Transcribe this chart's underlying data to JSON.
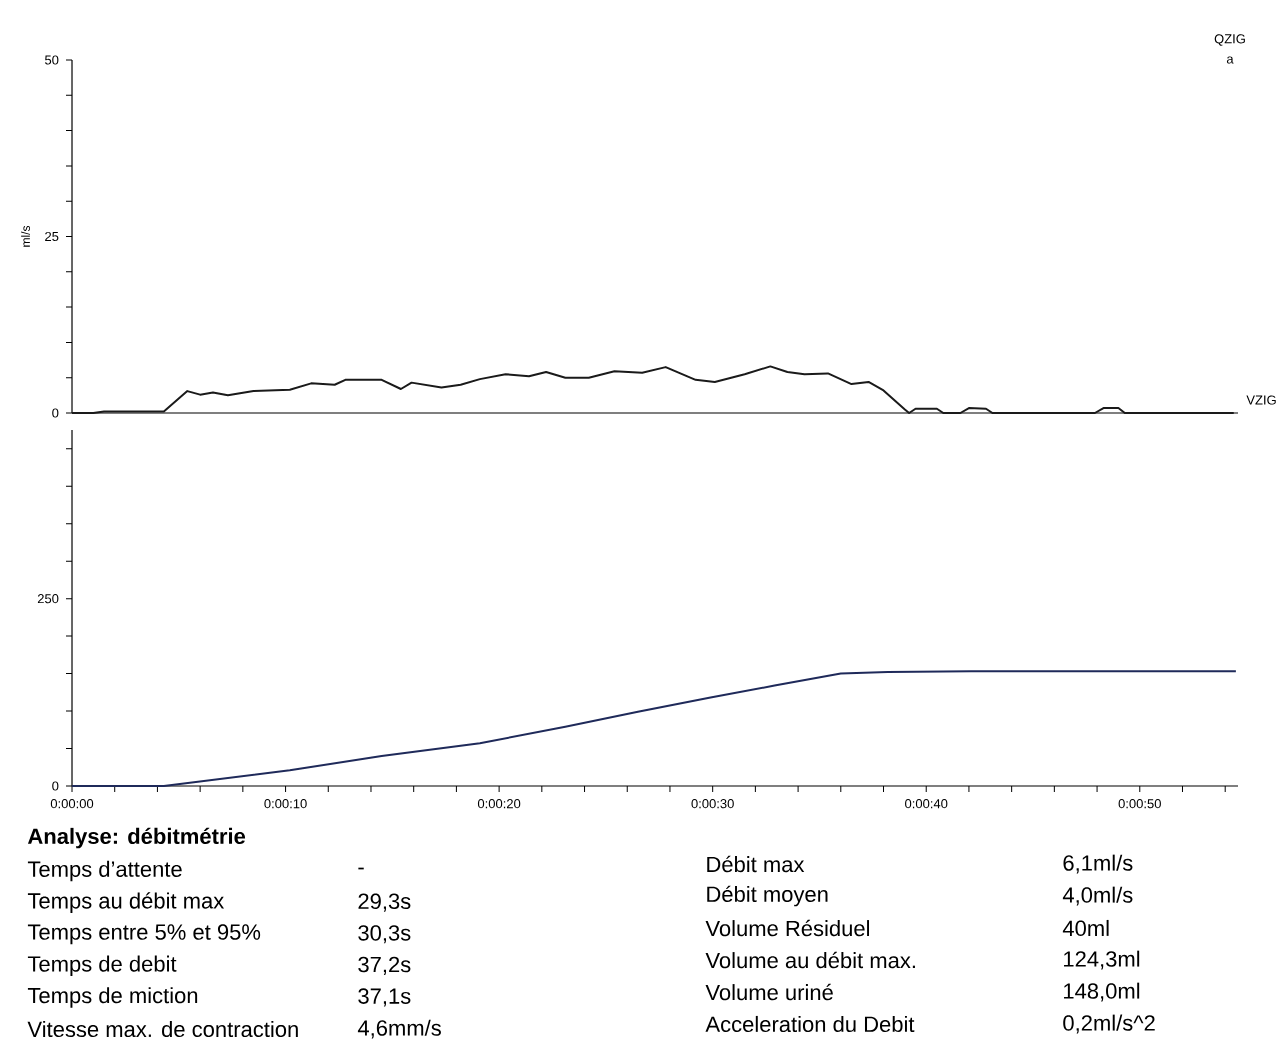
{
  "chart_data": [
    {
      "type": "line",
      "ylabel": "ml/s",
      "color": "#1a1a1a",
      "x": [
        0,
        1.0,
        1.5,
        4.3,
        5.4,
        6.0,
        6.6,
        7.3,
        8.5,
        10.2,
        11.2,
        12.3,
        12.8,
        14.5,
        15.4,
        15.9,
        17.3,
        18.2,
        19.1,
        20.3,
        21.4,
        22.2,
        23.1,
        24.2,
        25.4,
        26.7,
        27.8,
        29.2,
        30.1,
        31.5,
        32.7,
        33.5,
        34.3,
        35.4,
        36.5,
        37.3,
        38.0,
        39.0,
        39.2,
        39.5,
        40.5,
        40.8,
        41.6,
        42.0,
        42.8,
        43.1,
        47.9,
        48.3,
        49.0,
        49.3,
        54.4
      ],
      "values": [
        0,
        0,
        0.2,
        0.2,
        3.1,
        2.6,
        2.9,
        2.5,
        3.1,
        3.3,
        4.2,
        4.0,
        4.7,
        4.7,
        3.4,
        4.3,
        3.6,
        4.0,
        4.8,
        5.5,
        5.2,
        5.8,
        5.0,
        5.0,
        5.9,
        5.7,
        6.5,
        4.7,
        4.4,
        5.5,
        6.6,
        5.8,
        5.5,
        5.6,
        4.1,
        4.4,
        3.2,
        0.5,
        0,
        0.6,
        0.6,
        0,
        0,
        0.7,
        0.6,
        0,
        0,
        0.7,
        0.7,
        0,
        0
      ],
      "xlim": [
        0,
        54.6
      ],
      "ylim": [
        0,
        50
      ],
      "yticks": [
        0,
        {
          "value": 5,
          "label": null
        },
        {
          "value": 10,
          "label": null
        },
        {
          "value": 15,
          "label": null
        },
        {
          "value": 20,
          "label": null
        },
        25,
        {
          "value": 30,
          "label": null
        },
        {
          "value": 35,
          "label": null
        },
        {
          "value": 40,
          "label": null
        },
        {
          "value": 45,
          "label": null
        },
        50
      ],
      "tick_labels": "y",
      "annotations": [
        "QZIG",
        "a",
        "VZIG"
      ]
    },
    {
      "type": "line",
      "color": "#1f2a5a",
      "x": [
        0,
        4.3,
        10.2,
        14.5,
        19.1,
        23.1,
        26.5,
        29.9,
        32.9,
        36.0,
        38.2,
        42.1,
        54.5
      ],
      "values": [
        0,
        0,
        21,
        40,
        57,
        79,
        99,
        118,
        134,
        150,
        152,
        153,
        153
      ],
      "xlim": [
        0,
        54.6
      ],
      "ylim": [
        0,
        475
      ],
      "xticks": [
        {
          "value": 0,
          "label": "0:00:00"
        },
        {
          "value": 2,
          "label": null
        },
        {
          "value": 4,
          "label": null
        },
        {
          "value": 6,
          "label": null
        },
        {
          "value": 8,
          "label": null
        },
        {
          "value": 10,
          "label": "0:00:10"
        },
        {
          "value": 12,
          "label": null
        },
        {
          "value": 14,
          "label": null
        },
        {
          "value": 16,
          "label": null
        },
        {
          "value": 18,
          "label": null
        },
        {
          "value": 20,
          "label": "0:00:20"
        },
        {
          "value": 22,
          "label": null
        },
        {
          "value": 24,
          "label": null
        },
        {
          "value": 26,
          "label": null
        },
        {
          "value": 28,
          "label": null
        },
        {
          "value": 30,
          "label": "0:00:30"
        },
        {
          "value": 32,
          "label": null
        },
        {
          "value": 34,
          "label": null
        },
        {
          "value": 36,
          "label": null
        },
        {
          "value": 38,
          "label": null
        },
        {
          "value": 40,
          "label": "0:00:40"
        },
        {
          "value": 42,
          "label": null
        },
        {
          "value": 44,
          "label": null
        },
        {
          "value": 46,
          "label": null
        },
        {
          "value": 48,
          "label": null
        },
        {
          "value": 50,
          "label": "0:00:50"
        },
        {
          "value": 52,
          "label": null
        },
        {
          "value": 54,
          "label": null
        }
      ],
      "yticks": [
        0,
        {
          "value": 50,
          "label": null
        },
        {
          "value": 100,
          "label": null
        },
        {
          "value": 150,
          "label": null
        },
        {
          "value": 200,
          "label": null
        },
        250,
        {
          "value": 300,
          "label": null
        },
        {
          "value": 350,
          "label": null
        },
        {
          "value": 400,
          "label": null
        },
        {
          "value": 450,
          "label": null
        }
      ],
      "annotations": [
        "Analyse: débitmétrie",
        "Temps d’attente",
        "-",
        "Temps au débit max",
        "29,3s",
        "Temps entre  5% et 95%",
        "30,3s",
        "Temps de debit",
        "37,2s",
        "Temps de miction",
        "37,1s",
        "Vitesse max. de contraction",
        "4,6mm/s",
        "Débit max",
        "6,1ml/s",
        "Débit moyen",
        "4,0ml/s",
        "Volume Résiduel",
        "40ml",
        "Volume au débit max.",
        "124,3ml",
        "Volume uriné",
        "148,0ml",
        "Acceleration du Debit",
        "0,2ml/s^2"
      ]
    }
  ]
}
